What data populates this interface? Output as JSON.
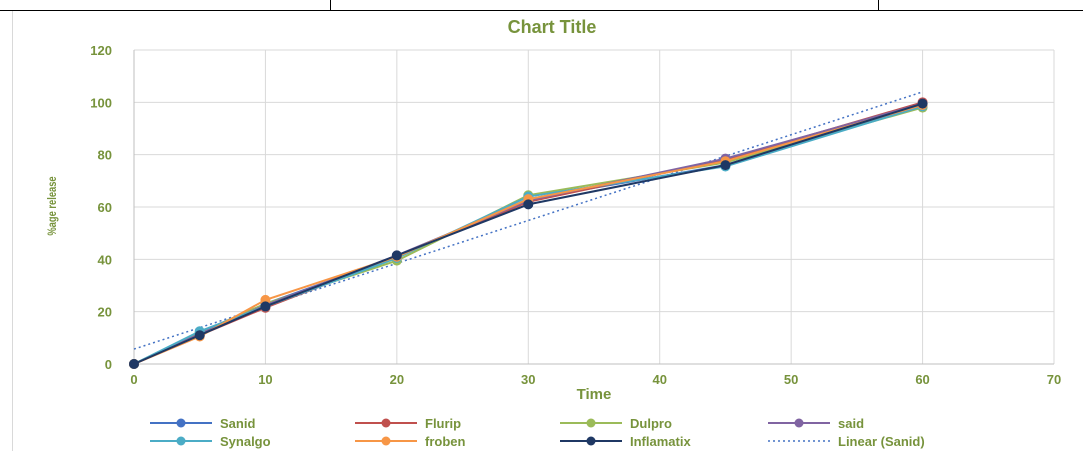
{
  "chart_data": {
    "type": "line",
    "title": "Chart Title",
    "xlabel": "Time",
    "ylabel": "%age release",
    "xlim": [
      0,
      70
    ],
    "ylim": [
      0,
      120
    ],
    "x_ticks": [
      0,
      10,
      20,
      30,
      40,
      50,
      60,
      70
    ],
    "y_ticks": [
      0,
      20,
      40,
      60,
      80,
      100,
      120
    ],
    "grid": true,
    "legend_position": "bottom",
    "x": [
      0,
      5,
      10,
      20,
      30,
      45,
      60
    ],
    "series": [
      {
        "name": "Sanid",
        "color": "#4472c4",
        "values": [
          0,
          12,
          23,
          41,
          63,
          76,
          99
        ]
      },
      {
        "name": "Flurip",
        "color": "#c0504d",
        "values": [
          0,
          11,
          21.5,
          41,
          62,
          78,
          100
        ]
      },
      {
        "name": "Dulpro",
        "color": "#9bbb59",
        "values": [
          0,
          12,
          23,
          39.5,
          64.5,
          77,
          98
        ]
      },
      {
        "name": "said",
        "color": "#8064a2",
        "values": [
          0,
          11.5,
          22.5,
          41.5,
          62.5,
          78.5,
          99.5
        ]
      },
      {
        "name": "Synalgo",
        "color": "#4bacc6",
        "values": [
          0,
          12.5,
          22,
          40.5,
          64,
          75.5,
          98.5
        ]
      },
      {
        "name": "froben",
        "color": "#f79646",
        "values": [
          0,
          10.5,
          24.5,
          41,
          63,
          77.5,
          99
        ]
      },
      {
        "name": "Inflamatix",
        "color": "#1f3864",
        "values": [
          0,
          11,
          22,
          41.5,
          61,
          76,
          99.5
        ]
      }
    ],
    "trendline": {
      "name": "Linear (Sanid)",
      "color": "#4472c4",
      "x": [
        0,
        60
      ],
      "values": [
        5.7,
        104
      ]
    }
  },
  "colors": {
    "title": "#77933c",
    "axis_text": "#77933c",
    "grid": "#d9d9d9",
    "axis": "#bfbfbf"
  }
}
